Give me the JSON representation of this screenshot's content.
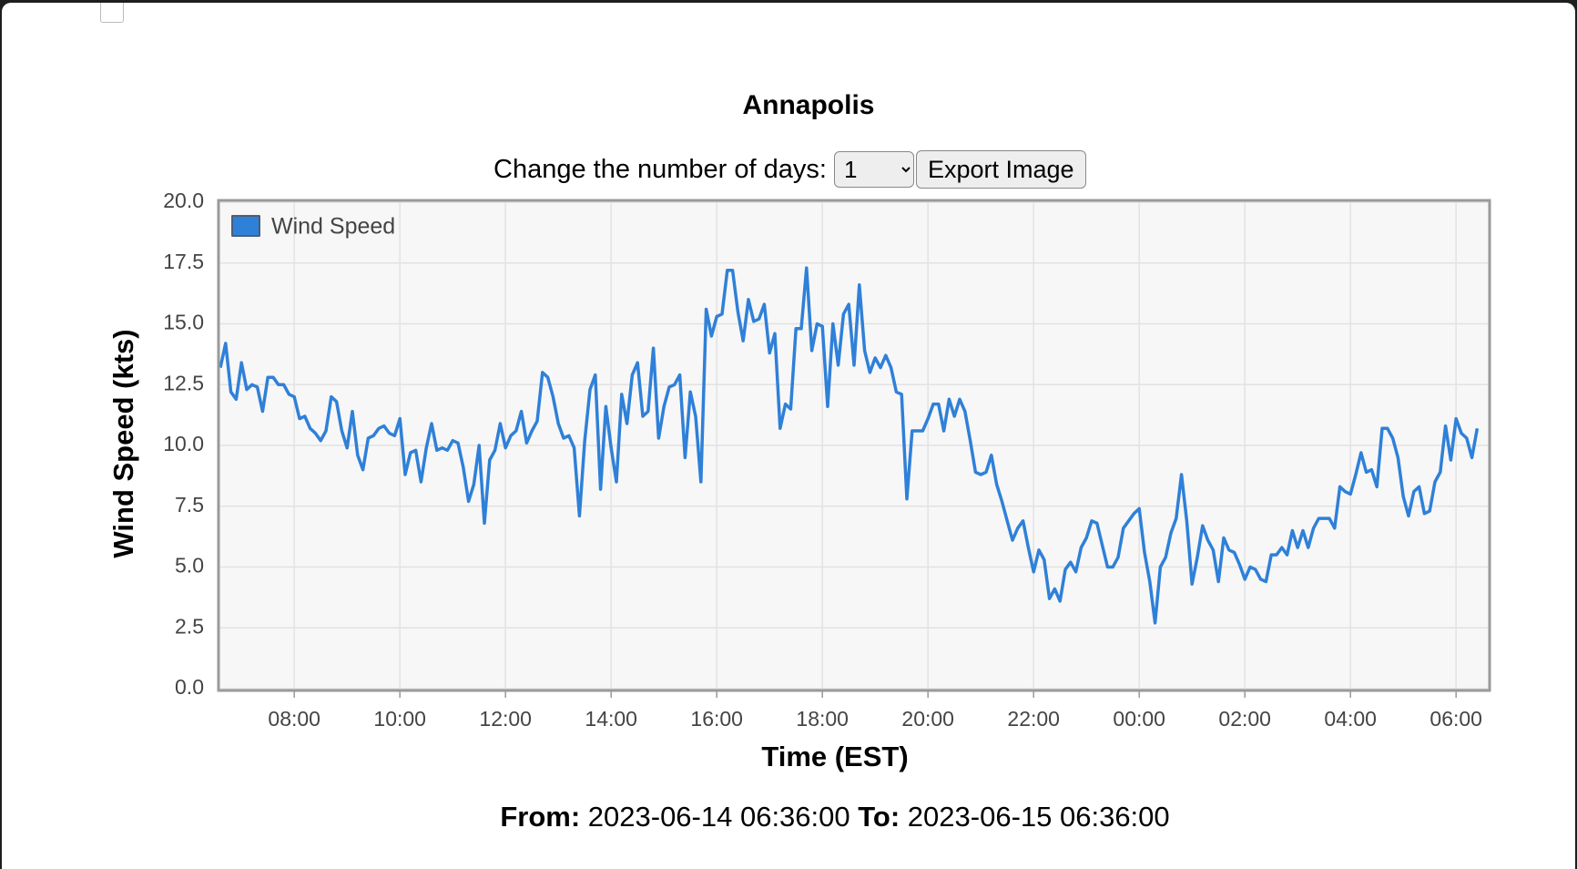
{
  "header": {
    "title": "Annapolis"
  },
  "controls": {
    "days_label": "Change the number of days:",
    "days_value": "1",
    "export_button": "Export Image"
  },
  "footer": {
    "from_label": "From:",
    "from_value": "2023-06-14 06:36:00",
    "to_label": "To:",
    "to_value": "2023-06-15 06:36:00"
  },
  "chart_data": {
    "type": "line",
    "x_label": "Time (EST)",
    "y_label": "Wind Speed (kts)",
    "xlim": [
      "06:36",
      "06:36"
    ],
    "xticks": [
      "08:00",
      "10:00",
      "12:00",
      "14:00",
      "16:00",
      "18:00",
      "20:00",
      "22:00",
      "00:00",
      "02:00",
      "04:00",
      "06:00"
    ],
    "ylim": [
      0,
      20
    ],
    "yticks": [
      {
        "value": 0,
        "label": "0.0"
      },
      2.5,
      {
        "value": 5,
        "label": "5.0"
      },
      7.5,
      {
        "value": 10,
        "label": "10.0"
      },
      12.5,
      {
        "value": 15,
        "label": "15.0"
      },
      17.5,
      {
        "value": 20,
        "label": "20.0"
      }
    ],
    "grid": true,
    "legend": "upper-left",
    "x": [
      "06:36",
      "06:42",
      "06:48",
      "06:54",
      "07:00",
      "07:06",
      "07:12",
      "07:18",
      "07:24",
      "07:30",
      "07:36",
      "07:42",
      "07:48",
      "07:54",
      "08:00",
      "08:06",
      "08:12",
      "08:18",
      "08:24",
      "08:30",
      "08:36",
      "08:42",
      "08:48",
      "08:54",
      "09:00",
      "09:06",
      "09:12",
      "09:18",
      "09:24",
      "09:30",
      "09:36",
      "09:42",
      "09:48",
      "09:54",
      "10:00",
      "10:06",
      "10:12",
      "10:18",
      "10:24",
      "10:30",
      "10:36",
      "10:42",
      "10:48",
      "10:54",
      "11:00",
      "11:06",
      "11:12",
      "11:18",
      "11:24",
      "11:30",
      "11:36",
      "11:42",
      "11:48",
      "11:54",
      "12:00",
      "12:06",
      "12:12",
      "12:18",
      "12:24",
      "12:30",
      "12:36",
      "12:42",
      "12:48",
      "12:54",
      "13:00",
      "13:06",
      "13:12",
      "13:18",
      "13:24",
      "13:30",
      "13:36",
      "13:42",
      "13:48",
      "13:54",
      "14:00",
      "14:06",
      "14:12",
      "14:18",
      "14:24",
      "14:30",
      "14:36",
      "14:42",
      "14:48",
      "14:54",
      "15:00",
      "15:06",
      "15:12",
      "15:18",
      "15:24",
      "15:30",
      "15:36",
      "15:42",
      "15:48",
      "15:54",
      "16:00",
      "16:06",
      "16:12",
      "16:18",
      "16:24",
      "16:30",
      "16:36",
      "16:42",
      "16:48",
      "16:54",
      "17:00",
      "17:06",
      "17:12",
      "17:18",
      "17:24",
      "17:30",
      "17:36",
      "17:42",
      "17:48",
      "17:54",
      "18:00",
      "18:06",
      "18:12",
      "18:18",
      "18:24",
      "18:30",
      "18:36",
      "18:42",
      "18:48",
      "18:54",
      "19:00",
      "19:06",
      "19:12",
      "19:18",
      "19:24",
      "19:30",
      "19:36",
      "19:42",
      "19:48",
      "19:54",
      "20:00",
      "20:06",
      "20:12",
      "20:18",
      "20:24",
      "20:30",
      "20:36",
      "20:42",
      "20:48",
      "20:54",
      "21:00",
      "21:06",
      "21:12",
      "21:18",
      "21:24",
      "21:30",
      "21:36",
      "21:42",
      "21:48",
      "21:54",
      "22:00",
      "22:06",
      "22:12",
      "22:18",
      "22:24",
      "22:30",
      "22:36",
      "22:42",
      "22:48",
      "22:54",
      "23:00",
      "23:06",
      "23:12",
      "23:18",
      "23:24",
      "23:30",
      "23:36",
      "23:42",
      "23:48",
      "23:54",
      "00:00",
      "00:06",
      "00:12",
      "00:18",
      "00:24",
      "00:30",
      "00:36",
      "00:42",
      "00:48",
      "00:54",
      "01:00",
      "01:06",
      "01:12",
      "01:18",
      "01:24",
      "01:30",
      "01:36",
      "01:42",
      "01:48",
      "01:54",
      "02:00",
      "02:06",
      "02:12",
      "02:18",
      "02:24",
      "02:30",
      "02:36",
      "02:42",
      "02:48",
      "02:54",
      "03:00",
      "03:06",
      "03:12",
      "03:18",
      "03:24",
      "03:30",
      "03:36",
      "03:42",
      "03:48",
      "03:54",
      "04:00",
      "04:06",
      "04:12",
      "04:18",
      "04:24",
      "04:30",
      "04:36",
      "04:42",
      "04:48",
      "04:54",
      "05:00",
      "05:06",
      "05:12",
      "05:18",
      "05:24",
      "05:30",
      "05:36",
      "05:42",
      "05:48",
      "05:54",
      "06:00",
      "06:06",
      "06:12",
      "06:18",
      "06:24"
    ],
    "series": [
      {
        "name": "Wind Speed",
        "color": "#2f80d8",
        "values": [
          13.2,
          14.2,
          12.2,
          11.9,
          13.4,
          12.3,
          12.5,
          12.4,
          11.4,
          12.8,
          12.8,
          12.5,
          12.5,
          12.1,
          12.0,
          11.1,
          11.2,
          10.7,
          10.5,
          10.2,
          10.6,
          12.0,
          11.8,
          10.6,
          9.9,
          11.4,
          9.6,
          9.0,
          10.3,
          10.4,
          10.7,
          10.8,
          10.5,
          10.4,
          11.1,
          8.8,
          9.7,
          9.8,
          8.5,
          9.9,
          10.9,
          9.8,
          9.9,
          9.8,
          10.2,
          10.1,
          9.1,
          7.7,
          8.4,
          10.0,
          6.8,
          9.4,
          9.8,
          10.9,
          9.9,
          10.4,
          10.6,
          11.4,
          10.1,
          10.6,
          11.0,
          13.0,
          12.8,
          12.0,
          10.9,
          10.3,
          10.4,
          9.9,
          7.1,
          10.2,
          12.3,
          12.9,
          8.2,
          11.6,
          9.9,
          8.5,
          12.1,
          10.9,
          12.9,
          13.4,
          11.2,
          11.4,
          14.0,
          10.3,
          11.6,
          12.4,
          12.5,
          12.9,
          9.5,
          12.2,
          11.2,
          8.5,
          15.6,
          14.5,
          15.3,
          15.4,
          17.2,
          17.2,
          15.5,
          14.3,
          16.0,
          15.1,
          15.2,
          15.8,
          13.8,
          14.6,
          10.7,
          11.7,
          11.5,
          14.8,
          14.8,
          17.3,
          13.9,
          15.0,
          14.9,
          11.6,
          15.0,
          13.3,
          15.4,
          15.8,
          13.3,
          16.6,
          13.9,
          13.0,
          13.6,
          13.2,
          13.7,
          13.2,
          12.2,
          12.1,
          7.8,
          10.6,
          10.6,
          10.6,
          11.1,
          11.7,
          11.7,
          10.6,
          11.9,
          11.2,
          11.9,
          11.4,
          10.2,
          8.9,
          8.8,
          8.9,
          9.6,
          8.4,
          7.7,
          6.9,
          6.1,
          6.6,
          6.9,
          5.8,
          4.8,
          5.7,
          5.3,
          3.7,
          4.1,
          3.6,
          4.9,
          5.2,
          4.8,
          5.8,
          6.2,
          6.9,
          6.8,
          5.9,
          5.0,
          5.0,
          5.4,
          6.6,
          6.9,
          7.2,
          7.4,
          5.6,
          4.4,
          2.7,
          5.0,
          5.4,
          6.4,
          7.0,
          8.8,
          6.9,
          4.3,
          5.4,
          6.7,
          6.1,
          5.7,
          4.4,
          6.2,
          5.7,
          5.6,
          5.1,
          4.5,
          5.0,
          4.9,
          4.5,
          4.4,
          5.5,
          5.5,
          5.8,
          5.5,
          6.5,
          5.8,
          6.5,
          5.8,
          6.6,
          7.0,
          7.0,
          7.0,
          6.6,
          8.3,
          8.1,
          8.0,
          8.8,
          9.7,
          8.9,
          9.0,
          8.3,
          10.7,
          10.7,
          10.3,
          9.5,
          7.9,
          7.1,
          8.1,
          8.3,
          7.2,
          7.3,
          8.5,
          8.9,
          10.8,
          9.4,
          11.1,
          10.5,
          10.3,
          9.5,
          10.7
        ]
      }
    ]
  }
}
